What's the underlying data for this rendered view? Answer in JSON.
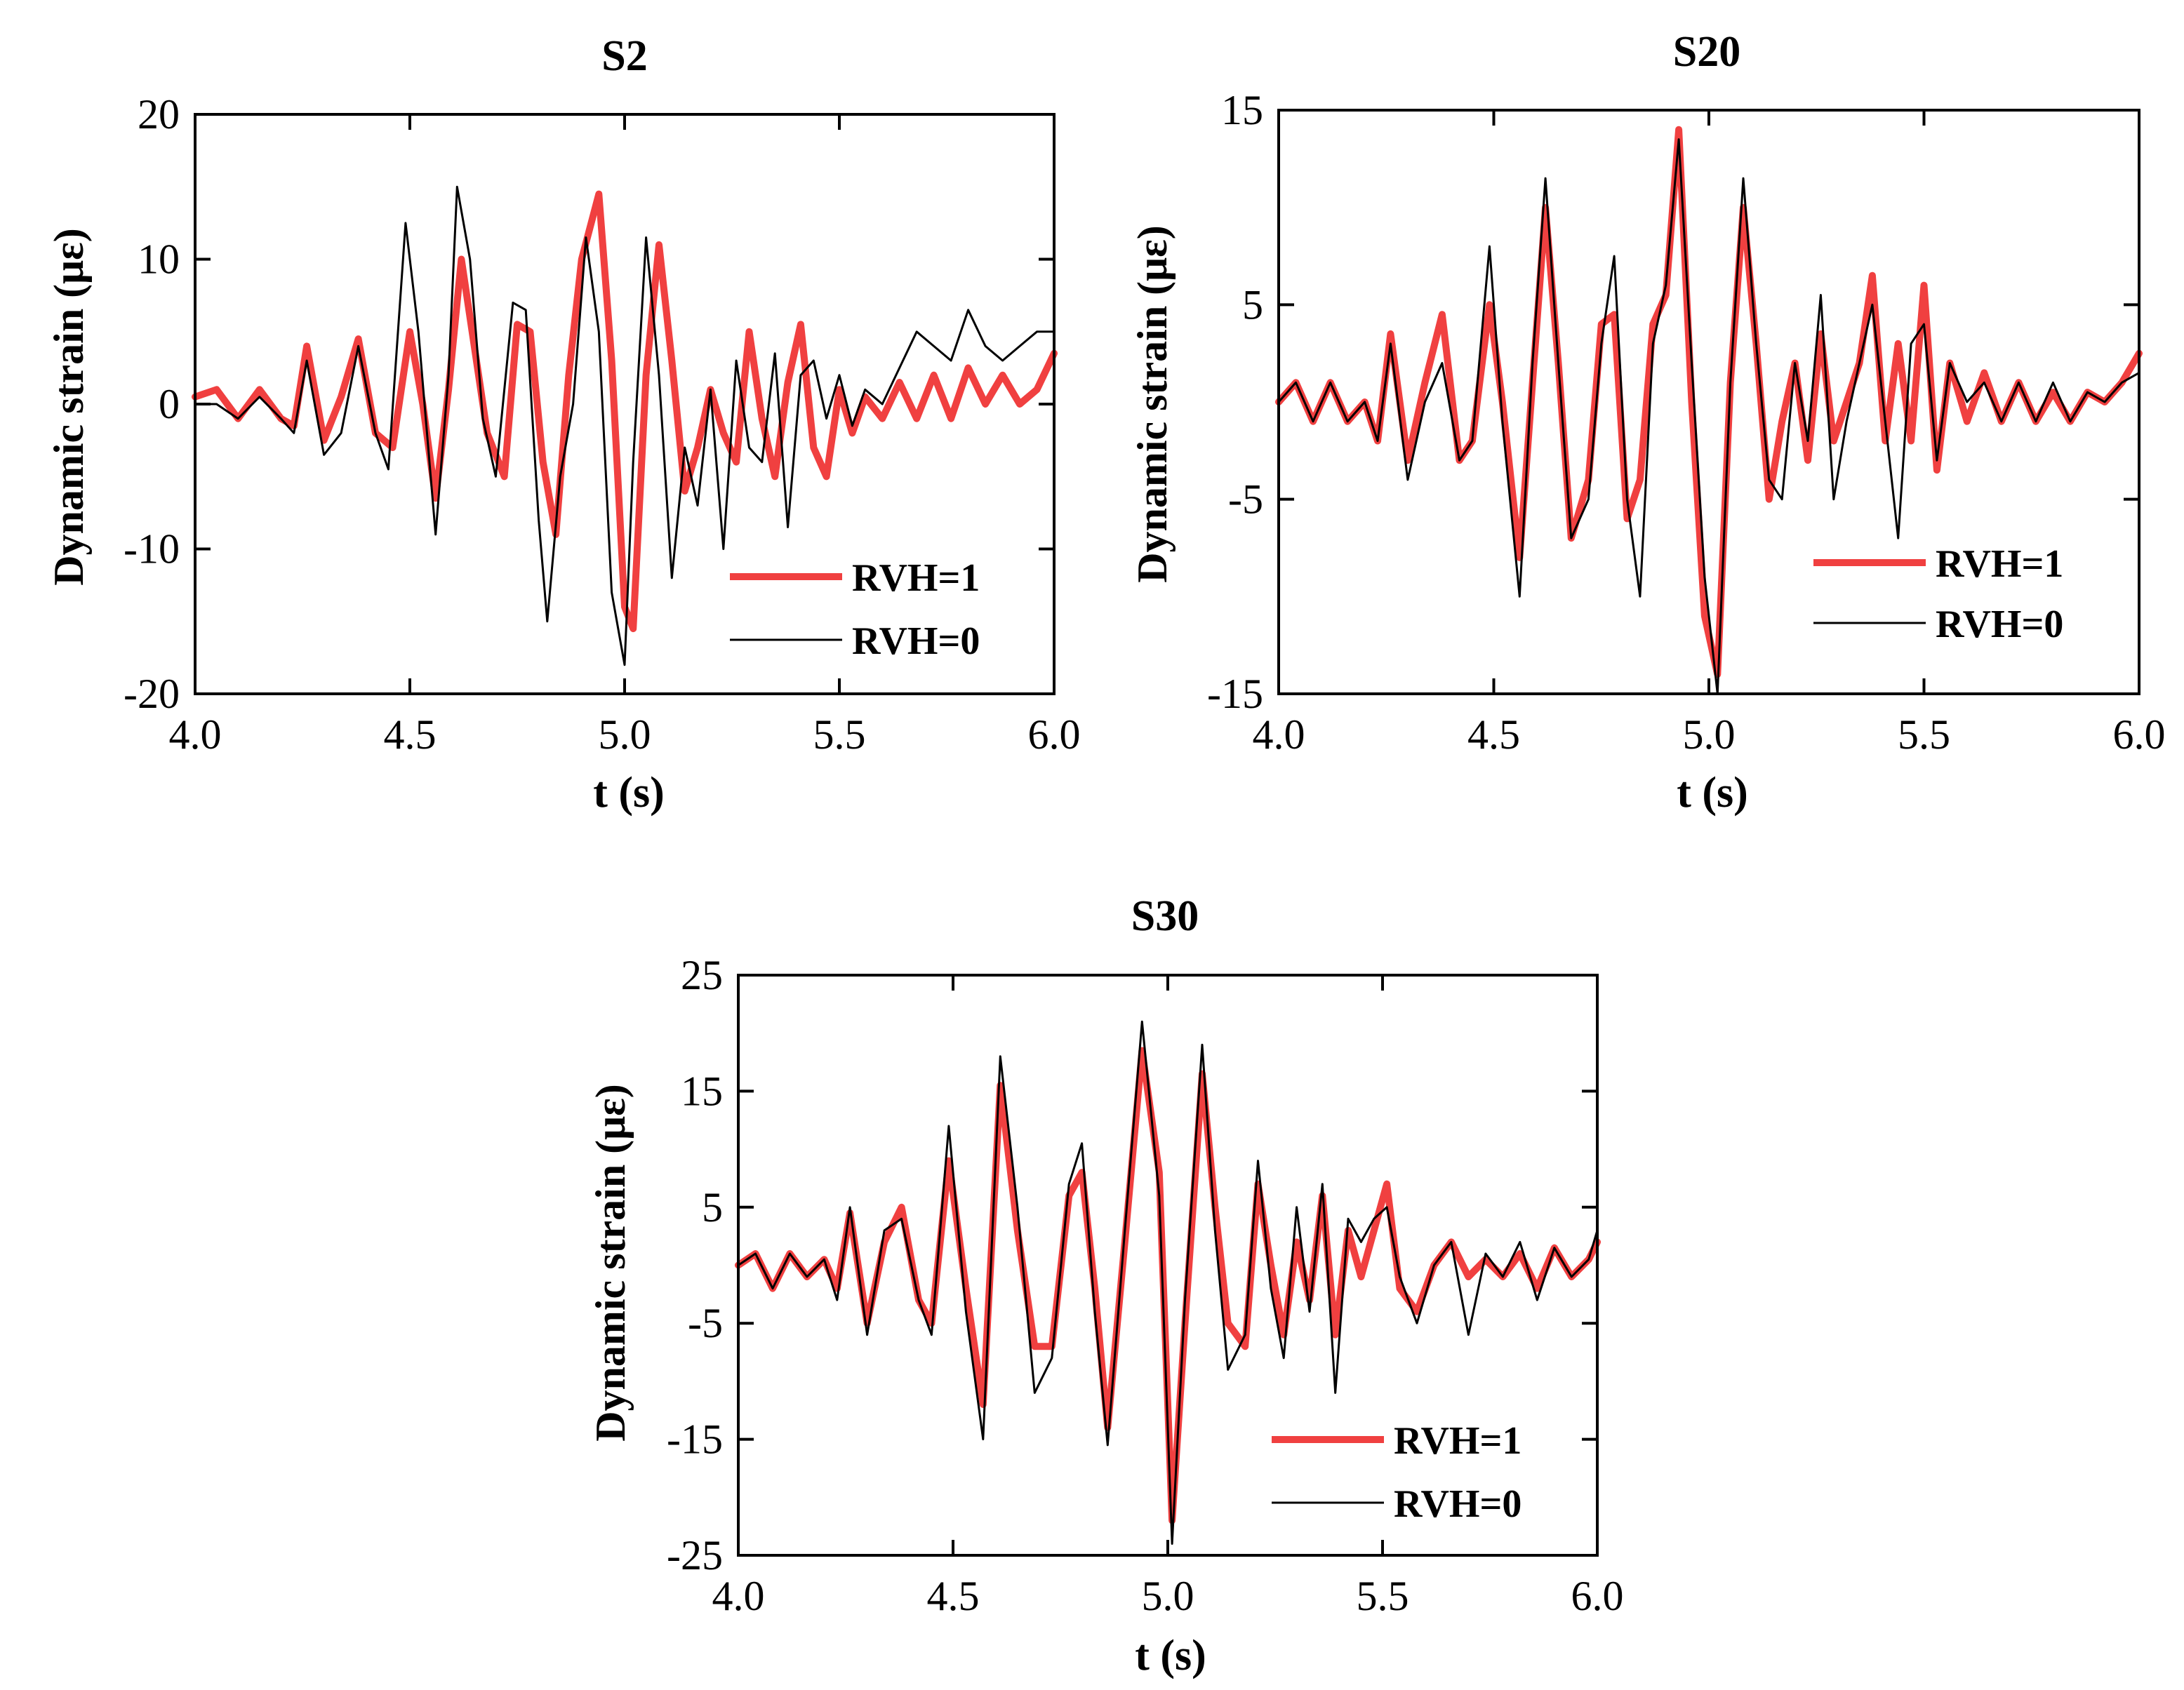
{
  "chart_data": [
    {
      "type": "line",
      "title": "S2",
      "xlabel": "t (s)",
      "ylabel": "Dynamic strain (με)",
      "xlim": [
        4.0,
        6.0
      ],
      "ylim": [
        -20,
        20
      ],
      "xticks": [
        "4.0",
        "4.5",
        "5.0",
        "5.5",
        "6.0"
      ],
      "yticks": [
        "20",
        "10",
        "0",
        "-10",
        "-20"
      ],
      "legend_position": "bottom-right",
      "series": [
        {
          "name": "RVH=1",
          "color": "#f04040",
          "x": [
            4.0,
            4.05,
            4.1,
            4.15,
            4.2,
            4.23,
            4.26,
            4.3,
            4.34,
            4.38,
            4.42,
            4.46,
            4.5,
            4.53,
            4.56,
            4.59,
            4.62,
            4.65,
            4.68,
            4.72,
            4.75,
            4.78,
            4.81,
            4.84,
            4.87,
            4.9,
            4.94,
            4.97,
            5.0,
            5.02,
            5.05,
            5.08,
            5.11,
            5.14,
            5.17,
            5.2,
            5.23,
            5.26,
            5.29,
            5.32,
            5.35,
            5.38,
            5.41,
            5.44,
            5.47,
            5.5,
            5.53,
            5.56,
            5.6,
            5.64,
            5.68,
            5.72,
            5.76,
            5.8,
            5.84,
            5.88,
            5.92,
            5.96,
            6.0
          ],
          "y": [
            0.5,
            1.0,
            -1.0,
            1.0,
            -1.0,
            -1.5,
            4.0,
            -2.5,
            0.5,
            4.5,
            -2.0,
            -3.0,
            5.0,
            0.0,
            -6.5,
            1.0,
            10.0,
            4.0,
            -2.0,
            -5.0,
            5.5,
            5.0,
            -4.0,
            -9.0,
            2.0,
            10.0,
            14.5,
            3.0,
            -14.0,
            -15.5,
            2.0,
            11.0,
            3.0,
            -6.0,
            -3.0,
            1.0,
            -2.0,
            -4.0,
            5.0,
            -1.0,
            -5.0,
            1.5,
            5.5,
            -3.0,
            -5.0,
            1.0,
            -2.0,
            0.5,
            -1.0,
            1.5,
            -1.0,
            2.0,
            -1.0,
            2.5,
            0.0,
            2.0,
            0.0,
            1.0,
            3.5
          ]
        },
        {
          "name": "RVH=0",
          "color": "#000000",
          "x": [
            4.0,
            4.05,
            4.1,
            4.15,
            4.2,
            4.23,
            4.26,
            4.3,
            4.34,
            4.38,
            4.42,
            4.45,
            4.49,
            4.52,
            4.56,
            4.59,
            4.61,
            4.64,
            4.67,
            4.7,
            4.74,
            4.77,
            4.8,
            4.82,
            4.85,
            4.88,
            4.91,
            4.94,
            4.97,
            5.0,
            5.02,
            5.05,
            5.08,
            5.11,
            5.14,
            5.17,
            5.2,
            5.23,
            5.26,
            5.29,
            5.32,
            5.35,
            5.38,
            5.41,
            5.44,
            5.47,
            5.5,
            5.53,
            5.56,
            5.6,
            5.64,
            5.68,
            5.72,
            5.76,
            5.8,
            5.84,
            5.88,
            5.92,
            5.96,
            6.0
          ],
          "y": [
            0.0,
            0.0,
            -1.0,
            0.5,
            -1.0,
            -2.0,
            3.0,
            -3.5,
            -2.0,
            4.0,
            -2.0,
            -4.5,
            12.5,
            5.0,
            -9.0,
            2.0,
            15.0,
            10.0,
            -1.0,
            -5.0,
            7.0,
            6.5,
            -8.0,
            -15.0,
            -5.0,
            0.0,
            11.5,
            5.0,
            -13.0,
            -18.0,
            -4.0,
            11.5,
            2.0,
            -12.0,
            -3.0,
            -7.0,
            1.0,
            -10.0,
            3.0,
            -3.0,
            -4.0,
            3.5,
            -8.5,
            2.0,
            3.0,
            -1.0,
            2.0,
            -1.5,
            1.0,
            0.0,
            2.5,
            5.0,
            4.0,
            3.0,
            6.5,
            4.0,
            3.0,
            4.0,
            5.0,
            5.0
          ]
        }
      ]
    },
    {
      "type": "line",
      "title": "S20",
      "xlabel": "t (s)",
      "ylabel": "Dynamic strain (με)",
      "xlim": [
        4.0,
        6.0
      ],
      "ylim": [
        -15,
        15
      ],
      "xticks": [
        "4.0",
        "4.5",
        "5.0",
        "5.5",
        "6.0"
      ],
      "yticks": [
        "15",
        "5",
        "-5",
        "-15"
      ],
      "legend_position": "top-right",
      "series": [
        {
          "name": "RVH=1",
          "color": "#f04040",
          "x": [
            4.0,
            4.04,
            4.08,
            4.12,
            4.16,
            4.2,
            4.23,
            4.26,
            4.3,
            4.34,
            4.38,
            4.42,
            4.45,
            4.49,
            4.52,
            4.56,
            4.59,
            4.62,
            4.65,
            4.68,
            4.72,
            4.75,
            4.78,
            4.81,
            4.84,
            4.87,
            4.9,
            4.93,
            4.96,
            4.99,
            5.02,
            5.05,
            5.08,
            5.11,
            5.14,
            5.17,
            5.2,
            5.23,
            5.26,
            5.29,
            5.32,
            5.35,
            5.38,
            5.41,
            5.44,
            5.47,
            5.5,
            5.53,
            5.56,
            5.6,
            5.64,
            5.68,
            5.72,
            5.76,
            5.8,
            5.84,
            5.88,
            5.92,
            5.96,
            6.0
          ],
          "y": [
            0.0,
            1.0,
            -1.0,
            1.0,
            -1.0,
            0.0,
            -2.0,
            3.5,
            -3.0,
            1.0,
            4.5,
            -3.0,
            -2.0,
            5.0,
            0.0,
            -8.0,
            1.0,
            10.0,
            2.0,
            -7.0,
            -4.0,
            4.0,
            4.5,
            -6.0,
            -4.0,
            4.0,
            5.5,
            14.0,
            0.0,
            -11.0,
            -14.0,
            1.0,
            10.0,
            3.0,
            -5.0,
            -1.0,
            2.0,
            -3.0,
            3.5,
            -2.0,
            0.0,
            2.0,
            6.5,
            -2.0,
            3.0,
            -2.0,
            6.0,
            -3.5,
            2.0,
            -1.0,
            1.5,
            -1.0,
            1.0,
            -1.0,
            0.5,
            -1.0,
            0.5,
            0.0,
            1.0,
            2.5
          ]
        },
        {
          "name": "RVH=0",
          "color": "#000000",
          "x": [
            4.0,
            4.04,
            4.08,
            4.12,
            4.16,
            4.2,
            4.23,
            4.26,
            4.3,
            4.34,
            4.38,
            4.42,
            4.45,
            4.49,
            4.52,
            4.56,
            4.59,
            4.62,
            4.65,
            4.68,
            4.72,
            4.75,
            4.78,
            4.81,
            4.84,
            4.87,
            4.9,
            4.93,
            4.96,
            4.99,
            5.02,
            5.05,
            5.08,
            5.11,
            5.14,
            5.17,
            5.2,
            5.23,
            5.26,
            5.29,
            5.32,
            5.35,
            5.38,
            5.41,
            5.44,
            5.47,
            5.5,
            5.53,
            5.56,
            5.6,
            5.64,
            5.68,
            5.72,
            5.76,
            5.8,
            5.84,
            5.88,
            5.92,
            5.96,
            6.0
          ],
          "y": [
            0.0,
            1.0,
            -1.0,
            1.0,
            -1.0,
            0.0,
            -2.0,
            3.0,
            -4.0,
            0.0,
            2.0,
            -3.0,
            -2.0,
            8.0,
            -1.0,
            -10.0,
            2.0,
            11.5,
            2.0,
            -7.0,
            -5.0,
            3.0,
            7.5,
            -5.0,
            -10.0,
            3.0,
            6.0,
            13.5,
            2.0,
            -9.0,
            -15.0,
            1.0,
            11.5,
            3.0,
            -4.0,
            -5.0,
            2.0,
            -2.0,
            5.5,
            -5.0,
            -1.0,
            2.0,
            5.0,
            -1.0,
            -7.0,
            3.0,
            4.0,
            -3.0,
            2.0,
            0.0,
            1.0,
            -1.0,
            1.0,
            -1.0,
            1.0,
            -1.0,
            0.5,
            0.0,
            1.0,
            1.5
          ]
        }
      ]
    },
    {
      "type": "line",
      "title": "S30",
      "xlabel": "t (s)",
      "ylabel": "Dynamic strain (με)",
      "xlim": [
        4.0,
        6.0
      ],
      "ylim": [
        -25,
        25
      ],
      "xticks": [
        "4.0",
        "4.5",
        "5.0",
        "5.5",
        "6.0"
      ],
      "yticks": [
        "25",
        "15",
        "5",
        "-5",
        "-15",
        "-25"
      ],
      "legend_position": "bottom-right",
      "series": [
        {
          "name": "RVH=1",
          "color": "#f04040",
          "x": [
            4.0,
            4.04,
            4.08,
            4.12,
            4.16,
            4.2,
            4.23,
            4.26,
            4.3,
            4.34,
            4.38,
            4.42,
            4.45,
            4.49,
            4.53,
            4.57,
            4.61,
            4.65,
            4.69,
            4.73,
            4.77,
            4.8,
            4.83,
            4.86,
            4.9,
            4.94,
            4.98,
            5.01,
            5.04,
            5.08,
            5.11,
            5.14,
            5.18,
            5.21,
            5.24,
            5.27,
            5.3,
            5.33,
            5.36,
            5.39,
            5.42,
            5.45,
            5.48,
            5.51,
            5.54,
            5.58,
            5.62,
            5.66,
            5.7,
            5.74,
            5.78,
            5.82,
            5.86,
            5.9,
            5.94,
            5.98,
            6.0
          ],
          "y": [
            0.0,
            1.0,
            -2.0,
            1.0,
            -1.0,
            0.5,
            -2.0,
            4.5,
            -5.0,
            2.0,
            5.0,
            -3.0,
            -5.0,
            9.0,
            -2.0,
            -12.0,
            15.5,
            3.0,
            -7.0,
            -7.0,
            6.0,
            8.0,
            -2.0,
            -14.0,
            2.0,
            18.5,
            8.0,
            -22.0,
            -5.0,
            16.5,
            5.0,
            -5.0,
            -7.0,
            7.0,
            0.0,
            -6.0,
            2.0,
            -3.0,
            6.0,
            -6.0,
            3.0,
            -1.0,
            3.0,
            7.0,
            -2.0,
            -4.0,
            0.0,
            2.0,
            -1.0,
            0.5,
            -1.0,
            1.0,
            -2.0,
            1.5,
            -1.0,
            0.5,
            2.0
          ]
        },
        {
          "name": "RVH=0",
          "color": "#000000",
          "x": [
            4.0,
            4.04,
            4.08,
            4.12,
            4.16,
            4.2,
            4.23,
            4.26,
            4.3,
            4.34,
            4.38,
            4.42,
            4.45,
            4.49,
            4.53,
            4.57,
            4.61,
            4.65,
            4.69,
            4.73,
            4.77,
            4.8,
            4.83,
            4.86,
            4.9,
            4.94,
            4.98,
            5.01,
            5.04,
            5.08,
            5.11,
            5.14,
            5.18,
            5.21,
            5.24,
            5.27,
            5.3,
            5.33,
            5.36,
            5.39,
            5.42,
            5.45,
            5.48,
            5.51,
            5.54,
            5.58,
            5.62,
            5.66,
            5.7,
            5.74,
            5.78,
            5.82,
            5.86,
            5.9,
            5.94,
            5.98,
            6.0
          ],
          "y": [
            0.0,
            1.0,
            -2.0,
            1.0,
            -1.0,
            0.5,
            -3.0,
            5.0,
            -6.0,
            3.0,
            4.0,
            -3.0,
            -6.0,
            12.0,
            -4.0,
            -15.0,
            18.0,
            5.0,
            -11.0,
            -8.0,
            7.0,
            10.5,
            -4.0,
            -15.5,
            3.0,
            21.0,
            6.0,
            -24.0,
            -3.0,
            19.0,
            3.0,
            -9.0,
            -6.0,
            9.0,
            -2.0,
            -8.0,
            5.0,
            -4.0,
            7.0,
            -11.0,
            4.0,
            2.0,
            4.0,
            5.0,
            -1.0,
            -5.0,
            0.0,
            2.0,
            -6.0,
            1.0,
            -1.0,
            2.0,
            -3.0,
            1.5,
            -1.0,
            0.5,
            3.0
          ]
        }
      ]
    }
  ]
}
